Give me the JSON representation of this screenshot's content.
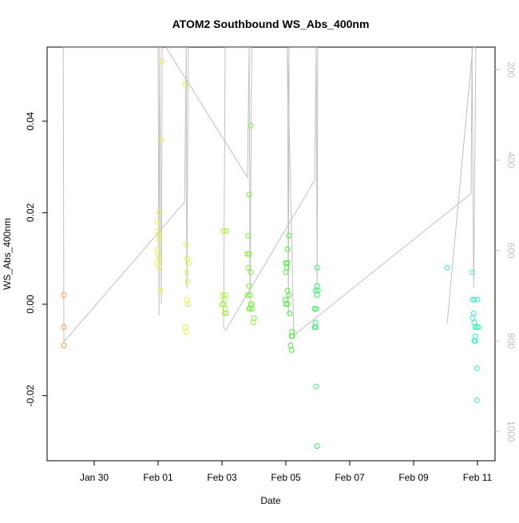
{
  "chart_data": {
    "type": "scatter",
    "title": "ATOM2 Southbound WS_Abs_400nm",
    "xlabel": "Date",
    "ylabel": "WS_Abs_400nm",
    "xlim": [
      28.525,
      42.55
    ],
    "xticks": [
      {
        "value": 30,
        "label": "Jan 30"
      },
      {
        "value": 32,
        "label": "Feb 01"
      },
      {
        "value": 34,
        "label": "Feb 03"
      },
      {
        "value": 36,
        "label": "Feb 05"
      },
      {
        "value": 38,
        "label": "Feb 07"
      },
      {
        "value": 40,
        "label": "Feb 09"
      },
      {
        "value": 42,
        "label": "Feb 11"
      }
    ],
    "ylim": [
      -0.0342,
      0.0562
    ],
    "yticks": [
      -0.02,
      {
        "value": 0,
        "label": "0.00"
      },
      0.02,
      0.04
    ],
    "y2lim": [
      1065,
      150
    ],
    "y2ticks": [
      200,
      400,
      600,
      800,
      1000
    ],
    "series": [
      {
        "type": "scatter",
        "x": [
          29.05,
          29.05,
          29.05,
          32.13,
          32.1,
          32.03,
          31.98,
          32.0,
          32.05,
          32.03,
          31.98,
          32.0,
          32.05,
          31.98,
          32.03,
          32.08,
          32.85,
          32.88,
          32.92,
          32.95,
          32.9,
          32.93,
          32.9,
          32.93,
          32.85,
          32.88,
          34.05,
          34.13,
          34.03,
          34.1,
          34.08,
          34.0,
          34.05,
          34.1,
          34.13,
          34.08,
          34.9,
          34.85,
          34.82,
          34.8,
          34.85,
          34.82,
          34.9,
          34.85,
          34.8,
          34.88,
          34.93,
          34.88,
          34.95,
          35.0,
          34.98,
          34.85,
          34.9,
          36.1,
          36.05,
          36.0,
          36.05,
          36.03,
          36.0,
          36.05,
          36.1,
          35.98,
          36.0,
          36.05,
          36.12,
          36.2,
          36.18,
          36.2,
          36.15,
          36.18,
          36.98,
          36.98,
          37.0,
          36.93,
          36.98,
          36.9,
          36.95,
          36.93,
          36.9,
          36.93,
          36.95,
          36.98,
          41.05,
          41.83,
          41.85,
          41.9,
          42.0,
          41.88,
          41.85,
          41.9,
          41.93,
          41.98,
          42.03,
          41.93,
          41.9,
          41.93,
          41.98,
          41.98
        ],
        "values": [
          0.002,
          -0.005,
          -0.009,
          0.053,
          0.036,
          0.02,
          0.018,
          0.016,
          0.015,
          0.014,
          0.012,
          0.011,
          0.01,
          0.009,
          0.008,
          0.003,
          0.048,
          0.013,
          0.01,
          0.009,
          0.007,
          0.005,
          0.001,
          0.0,
          -0.005,
          -0.006,
          0.016,
          0.016,
          0.002,
          0.002,
          0.001,
          0.0,
          0.0,
          -0.001,
          -0.002,
          -0.002,
          0.039,
          0.024,
          0.015,
          0.011,
          0.011,
          0.008,
          0.007,
          0.004,
          0.002,
          0.002,
          0.0,
          -0.001,
          -0.001,
          -0.003,
          -0.004,
          -0.001,
          0.0,
          0.015,
          0.012,
          0.009,
          0.009,
          0.008,
          0.007,
          0.003,
          0.002,
          0.001,
          0.0,
          0.0,
          -0.002,
          -0.006,
          -0.007,
          -0.007,
          -0.009,
          -0.01,
          0.008,
          0.004,
          0.003,
          0.003,
          0.002,
          -0.001,
          -0.001,
          -0.004,
          -0.005,
          -0.005,
          -0.018,
          -0.031,
          0.008,
          0.007,
          0.001,
          0.001,
          0.001,
          -0.002,
          -0.003,
          -0.004,
          -0.005,
          -0.005,
          -0.005,
          -0.007,
          -0.008,
          -0.008,
          -0.014,
          -0.021
        ],
        "colors": [
          "#f5a04a",
          "#f5a04a",
          "#f5a04a",
          "#e8f040",
          "#e8f040",
          "#e8f040",
          "#e8f040",
          "#e8f040",
          "#e8f040",
          "#e8f040",
          "#e8f040",
          "#e8f040",
          "#e8f040",
          "#e8f040",
          "#e8f040",
          "#e8f040",
          "#d4f53a",
          "#d4f53a",
          "#d4f53a",
          "#d4f53a",
          "#d4f53a",
          "#d4f53a",
          "#d4f53a",
          "#d4f53a",
          "#d4f53a",
          "#d4f53a",
          "#a8f03a",
          "#a8f03a",
          "#a8f03a",
          "#a8f03a",
          "#a8f03a",
          "#a8f03a",
          "#a8f03a",
          "#a8f03a",
          "#a8f03a",
          "#a8f03a",
          "#7bf03a",
          "#7bf03a",
          "#7bf03a",
          "#7bf03a",
          "#7bf03a",
          "#7bf03a",
          "#7bf03a",
          "#7bf03a",
          "#7bf03a",
          "#7bf03a",
          "#7bf03a",
          "#7bf03a",
          "#7bf03a",
          "#7bf03a",
          "#7bf03a",
          "#7bf03a",
          "#7bf03a",
          "#4cee3c",
          "#4cee3c",
          "#4cee3c",
          "#4cee3c",
          "#4cee3c",
          "#4cee3c",
          "#4cee3c",
          "#4cee3c",
          "#4cee3c",
          "#4cee3c",
          "#4cee3c",
          "#4cee3c",
          "#4cee3c",
          "#4cee3c",
          "#4cee3c",
          "#4cee3c",
          "#4cee3c",
          "#33ee66",
          "#33ee66",
          "#33ee66",
          "#33ee66",
          "#33ee66",
          "#33ee66",
          "#33ee66",
          "#33ee66",
          "#33ee66",
          "#33ee66",
          "#33ee66",
          "#33ee66",
          "#33eea0",
          "#33eec0",
          "#33eec0",
          "#33eec0",
          "#33eec0",
          "#33eec0",
          "#33eec0",
          "#33eec0",
          "#33eec0",
          "#33eec0",
          "#33eec0",
          "#33eec0",
          "#33eec0",
          "#33eec0",
          "#33eec0",
          "#33eec0"
        ]
      },
      {
        "type": "line",
        "axis": "y2",
        "color": "#c0c0c0",
        "x": [
          32.0,
          32.03,
          32.05,
          32.1,
          32.13,
          29.03,
          29.05,
          32.83,
          32.88,
          32.9,
          32.95,
          32.25,
          34.8,
          34.85,
          34.88,
          34.93,
          34.1,
          34.05,
          34.13,
          36.9,
          36.95,
          36.98,
          37.0,
          36.1,
          36.08,
          36.05,
          36.25,
          41.8,
          41.83,
          41.88,
          41.95,
          41.85,
          41.05
        ],
        "values": [
          151,
          744,
          151,
          717,
          151,
          151,
          802,
          493,
          151,
          685,
          151,
          151,
          438,
          151,
          717,
          151,
          151,
          770,
          775,
          445,
          151,
          682,
          151,
          151,
          744,
          151,
          788,
          474,
          151,
          682,
          151,
          151,
          761
        ]
      }
    ]
  }
}
